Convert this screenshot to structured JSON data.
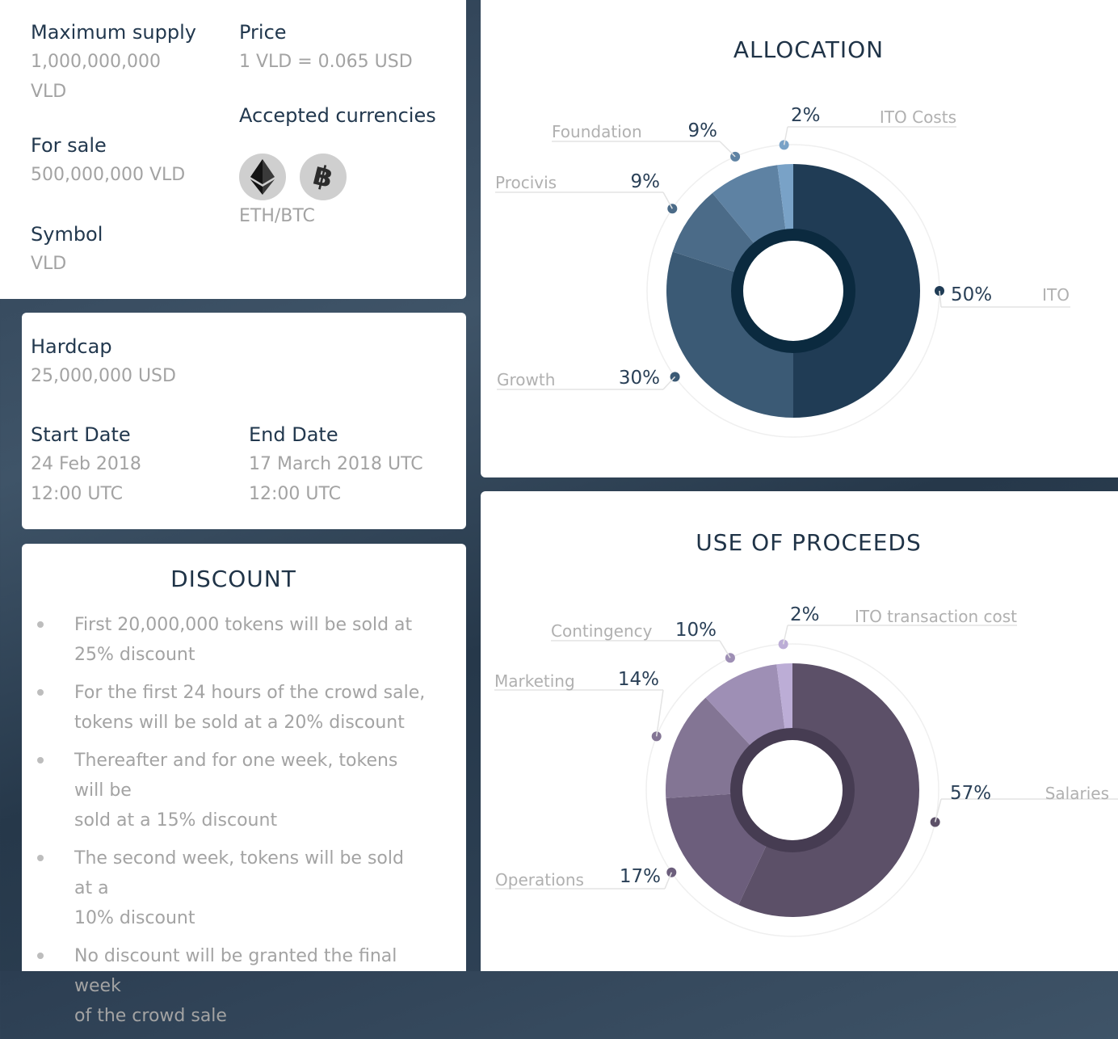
{
  "sale": {
    "max_supply_label": "Maximum supply",
    "max_supply_value_1": "1,000,000,000",
    "max_supply_value_2": "VLD",
    "price_label": "Price",
    "price_value": "1 VLD = 0.065 USD",
    "currencies_label": "Accepted currencies",
    "currencies_value": "ETH/BTC",
    "for_sale_label": "For sale",
    "for_sale_value": "500,000,000 VLD",
    "symbol_label": "Symbol",
    "symbol_value": "VLD",
    "eth_icon": "ethereum-icon",
    "btc_icon": "bitcoin-icon"
  },
  "dates": {
    "hardcap_label": "Hardcap",
    "hardcap_value": "25,000,000 USD",
    "start_label": "Start Date",
    "start_value_1": "24 Feb 2018",
    "start_value_2": "12:00 UTC",
    "end_label": "End Date",
    "end_value_1": "17 March 2018 UTC",
    "end_value_2": "12:00 UTC"
  },
  "discount": {
    "title": "DISCOUNT",
    "items": [
      [
        "First 20,000,000 tokens will be sold at",
        "25% discount"
      ],
      [
        "For the first 24 hours of the crowd sale,",
        "tokens will be sold at a 20% discount"
      ],
      [
        "Thereafter and for one week, tokens will be",
        "sold at a 15% discount"
      ],
      [
        "The second week, tokens will be sold at a",
        "10% discount"
      ],
      [
        "No discount will be granted the final week",
        "of the crowd sale"
      ]
    ]
  },
  "chart_data": [
    {
      "type": "pie",
      "title": "ALLOCATION",
      "slices": [
        {
          "name": "ITO",
          "value": 50,
          "label": "50%",
          "color": "#203c55"
        },
        {
          "name": "Growth",
          "value": 30,
          "label": "30%",
          "color": "#3b5a75"
        },
        {
          "name": "Procivis",
          "value": 9,
          "label": "9%",
          "color": "#4b6b88"
        },
        {
          "name": "Foundation",
          "value": 9,
          "label": "9%",
          "color": "#5e82a3"
        },
        {
          "name": "ITO Costs",
          "value": 2,
          "label": "2%",
          "color": "#79a2c7"
        }
      ],
      "inner_color": "#0b2a3f"
    },
    {
      "type": "pie",
      "title": "USE OF PROCEEDS",
      "slices": [
        {
          "name": "Salaries",
          "value": 57,
          "label": "57%",
          "color": "#5c5068"
        },
        {
          "name": "Operations",
          "value": 17,
          "label": "17%",
          "color": "#6c5e7c"
        },
        {
          "name": "Marketing",
          "value": 14,
          "label": "14%",
          "color": "#837594"
        },
        {
          "name": "Contingency",
          "value": 10,
          "label": "10%",
          "color": "#9e8fb5"
        },
        {
          "name": "ITO transaction cost",
          "value": 2,
          "label": "2%",
          "color": "#bcadd6"
        }
      ],
      "inner_color": "#463c52"
    }
  ]
}
